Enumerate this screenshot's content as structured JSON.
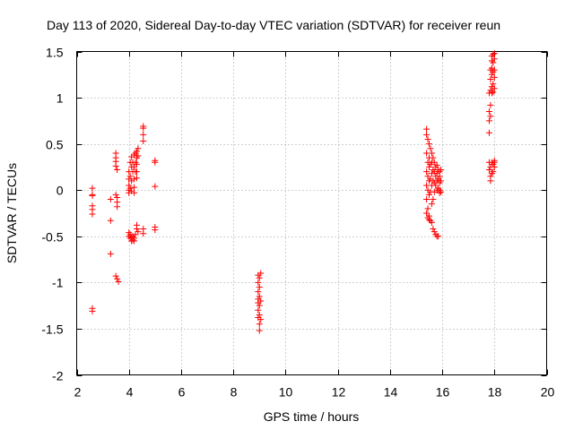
{
  "chart_data": {
    "type": "scatter",
    "title": "Day 113 of 2020, Sidereal Day-to-day VTEC variation (SDTVAR) for receiver reun",
    "xlabel": "GPS time / hours",
    "ylabel": "SDTVAR / TECUs",
    "xlim": [
      2,
      20
    ],
    "ylim": [
      -2,
      1.5
    ],
    "xticks": [
      2,
      4,
      6,
      8,
      10,
      12,
      14,
      16,
      18,
      20
    ],
    "yticks": [
      -2,
      -1.5,
      -1,
      -0.5,
      0,
      0.5,
      1,
      1.5
    ],
    "xtick_labels": [
      "2",
      "4",
      "6",
      "8",
      "10",
      "12",
      "14",
      "16",
      "18",
      "20"
    ],
    "ytick_labels": [
      "-2",
      "-1.5",
      "-1",
      "-0.5",
      "0",
      "0.5",
      "1",
      "1.5"
    ],
    "grid": true,
    "marker": "+",
    "color": "#ff0000",
    "series": [
      {
        "name": "SDTVAR",
        "points": [
          [
            2.6,
            0.02
          ],
          [
            2.6,
            -0.05
          ],
          [
            2.6,
            -0.06
          ],
          [
            2.6,
            -0.17
          ],
          [
            2.6,
            -0.21
          ],
          [
            2.6,
            -0.26
          ],
          [
            2.6,
            -1.28
          ],
          [
            2.6,
            -1.31
          ],
          [
            3.3,
            -0.1
          ],
          [
            3.3,
            -0.33
          ],
          [
            3.3,
            -0.69
          ],
          [
            3.5,
            0.4
          ],
          [
            3.5,
            0.35
          ],
          [
            3.5,
            0.31
          ],
          [
            3.5,
            0.26
          ],
          [
            3.55,
            0.22
          ],
          [
            3.5,
            -0.05
          ],
          [
            3.55,
            -0.08
          ],
          [
            3.55,
            -0.13
          ],
          [
            3.55,
            -0.18
          ],
          [
            3.5,
            -0.93
          ],
          [
            3.55,
            -0.96
          ],
          [
            3.6,
            -0.99
          ],
          [
            4.0,
            0.2
          ],
          [
            4.0,
            0.12
          ],
          [
            4.0,
            0.05
          ],
          [
            4.0,
            0.0
          ],
          [
            4.0,
            -0.03
          ],
          [
            4.0,
            -0.46
          ],
          [
            4.0,
            -0.5
          ],
          [
            4.05,
            0.3
          ],
          [
            4.05,
            0.15
          ],
          [
            4.05,
            0.02
          ],
          [
            4.05,
            -0.48
          ],
          [
            4.05,
            -0.52
          ],
          [
            4.1,
            0.36
          ],
          [
            4.1,
            0.25
          ],
          [
            4.1,
            0.1
          ],
          [
            4.1,
            -0.01
          ],
          [
            4.1,
            -0.51
          ],
          [
            4.1,
            -0.55
          ],
          [
            4.15,
            0.3
          ],
          [
            4.15,
            0.2
          ],
          [
            4.15,
            -0.5
          ],
          [
            4.15,
            -0.54
          ],
          [
            4.2,
            0.38
          ],
          [
            4.2,
            0.25
          ],
          [
            4.2,
            0.12
          ],
          [
            4.2,
            0.03
          ],
          [
            4.2,
            -0.03
          ],
          [
            4.2,
            -0.52
          ],
          [
            4.2,
            -0.55
          ],
          [
            4.25,
            0.4
          ],
          [
            4.25,
            0.3
          ],
          [
            4.25,
            0.2
          ],
          [
            4.25,
            -0.48
          ],
          [
            4.3,
            0.42
          ],
          [
            4.3,
            0.35
          ],
          [
            4.3,
            0.28
          ],
          [
            4.3,
            0.2
          ],
          [
            4.3,
            0.13
          ],
          [
            4.3,
            -0.38
          ],
          [
            4.3,
            -0.42
          ],
          [
            4.35,
            0.45
          ],
          [
            4.35,
            0.37
          ],
          [
            4.35,
            -0.45
          ],
          [
            4.55,
            0.69
          ],
          [
            4.55,
            0.67
          ],
          [
            4.55,
            0.6
          ],
          [
            4.55,
            0.53
          ],
          [
            4.55,
            -0.42
          ],
          [
            4.55,
            -0.47
          ],
          [
            5.0,
            0.32
          ],
          [
            5.0,
            0.3
          ],
          [
            5.0,
            0.04
          ],
          [
            5.0,
            -0.4
          ],
          [
            5.0,
            -0.43
          ],
          [
            8.95,
            -0.92
          ],
          [
            8.95,
            -1.0
          ],
          [
            8.95,
            -1.1
          ],
          [
            8.95,
            -1.18
          ],
          [
            8.95,
            -1.22
          ],
          [
            8.95,
            -1.3
          ],
          [
            8.95,
            -1.38
          ],
          [
            9.0,
            -0.95
          ],
          [
            9.0,
            -1.05
          ],
          [
            9.0,
            -1.15
          ],
          [
            9.0,
            -1.25
          ],
          [
            9.0,
            -1.35
          ],
          [
            9.0,
            -1.45
          ],
          [
            9.0,
            -1.52
          ],
          [
            9.05,
            -0.9
          ],
          [
            9.05,
            -1.2
          ],
          [
            9.05,
            -1.4
          ],
          [
            15.4,
            0.66
          ],
          [
            15.4,
            0.6
          ],
          [
            15.4,
            0.4
          ],
          [
            15.4,
            0.2
          ],
          [
            15.4,
            0.05
          ],
          [
            15.4,
            -0.1
          ],
          [
            15.4,
            -0.25
          ],
          [
            15.45,
            0.55
          ],
          [
            15.45,
            0.3
          ],
          [
            15.45,
            0.15
          ],
          [
            15.45,
            0.0
          ],
          [
            15.45,
            -0.2
          ],
          [
            15.45,
            -0.3
          ],
          [
            15.5,
            0.5
          ],
          [
            15.5,
            0.35
          ],
          [
            15.5,
            0.25
          ],
          [
            15.5,
            0.1
          ],
          [
            15.5,
            -0.05
          ],
          [
            15.5,
            -0.28
          ],
          [
            15.5,
            -0.32
          ],
          [
            15.55,
            0.45
          ],
          [
            15.55,
            0.28
          ],
          [
            15.55,
            0.12
          ],
          [
            15.55,
            -0.02
          ],
          [
            15.55,
            -0.33
          ],
          [
            15.6,
            0.4
          ],
          [
            15.6,
            0.3
          ],
          [
            15.6,
            0.18
          ],
          [
            15.6,
            0.05
          ],
          [
            15.6,
            -0.15
          ],
          [
            15.6,
            -0.35
          ],
          [
            15.65,
            0.35
          ],
          [
            15.65,
            0.22
          ],
          [
            15.65,
            0.1
          ],
          [
            15.65,
            -0.1
          ],
          [
            15.65,
            -0.42
          ],
          [
            15.7,
            0.3
          ],
          [
            15.7,
            0.2
          ],
          [
            15.7,
            0.08
          ],
          [
            15.7,
            -0.02
          ],
          [
            15.7,
            -0.45
          ],
          [
            15.75,
            0.25
          ],
          [
            15.75,
            0.15
          ],
          [
            15.75,
            0.05
          ],
          [
            15.75,
            -0.48
          ],
          [
            15.8,
            0.27
          ],
          [
            15.8,
            0.18
          ],
          [
            15.8,
            0.1
          ],
          [
            15.8,
            0.0
          ],
          [
            15.8,
            -0.5
          ],
          [
            15.85,
            0.22
          ],
          [
            15.85,
            0.12
          ],
          [
            15.85,
            0.02
          ],
          [
            15.85,
            -0.5
          ],
          [
            15.9,
            0.2
          ],
          [
            15.9,
            0.15
          ],
          [
            15.9,
            0.08
          ],
          [
            15.9,
            0.0
          ],
          [
            15.9,
            -0.03
          ],
          [
            15.95,
            0.22
          ],
          [
            15.95,
            0.1
          ],
          [
            15.95,
            -0.02
          ],
          [
            17.8,
            0.62
          ],
          [
            17.8,
            0.75
          ],
          [
            17.8,
            0.85
          ],
          [
            17.8,
            1.05
          ],
          [
            17.8,
            0.3
          ],
          [
            17.8,
            0.22
          ],
          [
            17.85,
            1.3
          ],
          [
            17.85,
            1.2
          ],
          [
            17.85,
            1.08
          ],
          [
            17.85,
            0.92
          ],
          [
            17.85,
            0.8
          ],
          [
            17.85,
            0.25
          ],
          [
            17.85,
            0.15
          ],
          [
            17.85,
            0.1
          ],
          [
            17.9,
            1.45
          ],
          [
            17.9,
            1.4
          ],
          [
            17.9,
            1.32
          ],
          [
            17.9,
            1.25
          ],
          [
            17.9,
            1.12
          ],
          [
            17.9,
            1.05
          ],
          [
            17.9,
            0.3
          ],
          [
            17.9,
            0.18
          ],
          [
            17.95,
            1.47
          ],
          [
            17.95,
            1.38
          ],
          [
            17.95,
            1.28
          ],
          [
            17.95,
            1.15
          ],
          [
            17.95,
            1.06
          ],
          [
            17.95,
            0.28
          ],
          [
            17.95,
            0.2
          ],
          [
            18.0,
            1.48
          ],
          [
            18.0,
            1.42
          ],
          [
            18.0,
            1.3
          ],
          [
            18.0,
            1.22
          ],
          [
            18.0,
            1.1
          ],
          [
            18.0,
            0.32
          ],
          [
            18.0,
            0.3
          ],
          [
            18.0,
            0.25
          ]
        ]
      }
    ]
  }
}
